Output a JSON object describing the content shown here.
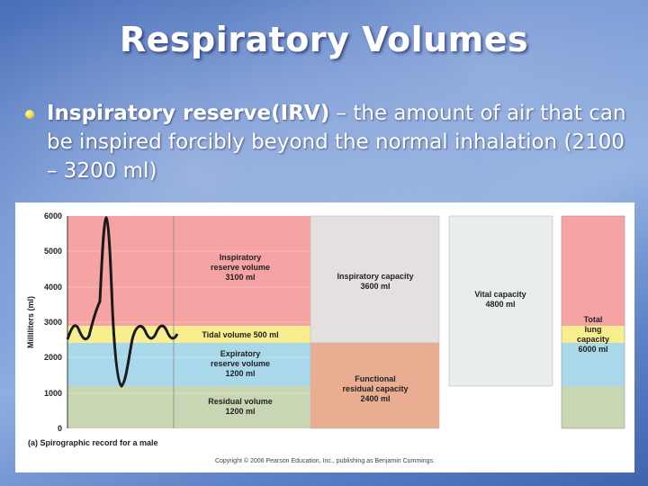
{
  "slide": {
    "title": "Respiratory Volumes",
    "bullet": {
      "term": "Inspiratory reserve(IRV)",
      "description": " – the amount of air that can be inspired forcibly beyond the normal inhalation (2100 – 3200 ml)"
    }
  },
  "figure": {
    "caption": "(a) Spirographic record for a male",
    "copyright": "Copyright © 2006 Pearson Education, Inc., publishing as Benjamin Cummings.",
    "y_axis": {
      "label": "Milliliters (ml)",
      "ticks": [
        "6000",
        "5000",
        "4000",
        "3000",
        "2000",
        "1000",
        "0"
      ]
    },
    "volumes": {
      "irv": {
        "line1": "Inspiratory",
        "line2": "reserve volume",
        "line3": "3100 ml"
      },
      "tidal": {
        "line1": "Tidal volume 500 ml"
      },
      "erv": {
        "line1": "Expiratory",
        "line2": "reserve volume",
        "line3": "1200 ml"
      },
      "rv": {
        "line1": "Residual volume",
        "line2": "1200 ml"
      }
    },
    "capacities": {
      "ic": {
        "line1": "Inspiratory capacity",
        "line2": "3600 ml"
      },
      "frc": {
        "line1": "Functional",
        "line2": "residual capacity",
        "line3": "2400 ml"
      },
      "vc": {
        "line1": "Vital capacity",
        "line2": "4800 ml"
      },
      "tlc": {
        "line1": "Total",
        "line2": "lung",
        "line3": "capacity",
        "line4": "6000 ml"
      }
    },
    "colors": {
      "irv": "#f5a3a3",
      "tidal": "#f8ee8e",
      "erv": "#a8d8ea",
      "rv": "#c9d6b3",
      "ic": "#e5e0e0",
      "frc": "#e9ae92",
      "vc": "#e9eeea",
      "tlc_top": "#f5a3a3",
      "trace": "#1a1a1a"
    }
  }
}
